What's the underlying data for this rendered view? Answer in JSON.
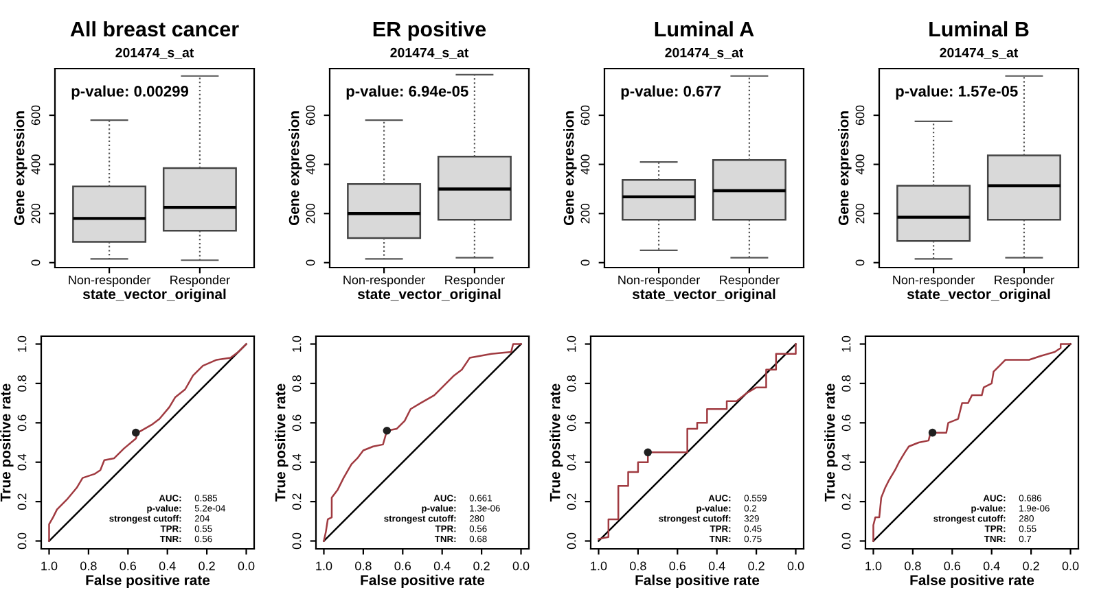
{
  "chart_data": [
    {
      "type": "box",
      "title": "All breast cancer",
      "subtitle": "201474_s_at",
      "xlabel": "state_vector_original",
      "ylabel": "Gene expression",
      "categories": [
        "Non-responder",
        "Responder"
      ],
      "ylim": [
        -20,
        790
      ],
      "yticks": [
        0,
        200,
        400,
        600
      ],
      "grid": false,
      "legend": false,
      "annotations": [
        "p-value: 0.00299"
      ],
      "series": [
        {
          "color": "#d9d9d9",
          "boxes": [
            {
              "low": 15,
              "q1": 85,
              "median": 180,
              "q3": 310,
              "high": 580
            },
            {
              "low": 10,
              "q1": 130,
              "median": 225,
              "q3": 385,
              "high": 760
            }
          ]
        }
      ]
    },
    {
      "type": "box",
      "title": "ER positive",
      "subtitle": "201474_s_at",
      "xlabel": "state_vector_original",
      "ylabel": "Gene expression",
      "categories": [
        "Non-responder",
        "Responder"
      ],
      "ylim": [
        -20,
        790
      ],
      "yticks": [
        0,
        200,
        400,
        600
      ],
      "grid": false,
      "legend": false,
      "annotations": [
        "p-value: 6.94e-05"
      ],
      "series": [
        {
          "color": "#d9d9d9",
          "boxes": [
            {
              "low": 15,
              "q1": 100,
              "median": 200,
              "q3": 320,
              "high": 580
            },
            {
              "low": 20,
              "q1": 175,
              "median": 300,
              "q3": 432,
              "high": 765
            }
          ]
        }
      ]
    },
    {
      "type": "box",
      "title": "Luminal A",
      "subtitle": "201474_s_at",
      "xlabel": "state_vector_original",
      "ylabel": "Gene expression",
      "categories": [
        "Non-responder",
        "Responder"
      ],
      "ylim": [
        -20,
        790
      ],
      "yticks": [
        0,
        200,
        400,
        600
      ],
      "grid": false,
      "legend": false,
      "annotations": [
        "p-value: 0.677"
      ],
      "series": [
        {
          "color": "#d9d9d9",
          "boxes": [
            {
              "low": 50,
              "q1": 175,
              "median": 268,
              "q3": 337,
              "high": 410
            },
            {
              "low": 20,
              "q1": 175,
              "median": 293,
              "q3": 418,
              "high": 760
            }
          ]
        }
      ]
    },
    {
      "type": "box",
      "title": "Luminal B",
      "subtitle": "201474_s_at",
      "xlabel": "state_vector_original",
      "ylabel": "Gene expression",
      "categories": [
        "Non-responder",
        "Responder"
      ],
      "ylim": [
        -20,
        790
      ],
      "yticks": [
        0,
        200,
        400,
        600
      ],
      "grid": false,
      "legend": false,
      "annotations": [
        "p-value: 1.57e-05"
      ],
      "series": [
        {
          "color": "#d9d9d9",
          "boxes": [
            {
              "low": 15,
              "q1": 88,
              "median": 185,
              "q3": 313,
              "high": 575
            },
            {
              "low": 20,
              "q1": 175,
              "median": 313,
              "q3": 437,
              "high": 760
            }
          ]
        }
      ]
    },
    {
      "type": "line",
      "xlabel": "False positive rate",
      "ylabel": "True positive rate",
      "xlim": [
        1.04,
        -0.04
      ],
      "ylim": [
        -0.04,
        1.04
      ],
      "xticks": [
        {
          "value": 1,
          "label": "1.0"
        },
        {
          "value": 0.8,
          "label": "0.8"
        },
        {
          "value": 0.6,
          "label": "0.6"
        },
        {
          "value": 0.4,
          "label": "0.4"
        },
        {
          "value": 0.2,
          "label": "0.2"
        },
        {
          "value": 0,
          "label": "0.0"
        }
      ],
      "yticks": [
        {
          "value": 0,
          "label": "0.0"
        },
        {
          "value": 0.2,
          "label": "0.2"
        },
        {
          "value": 0.4,
          "label": "0.4"
        },
        {
          "value": 0.6,
          "label": "0.6"
        },
        {
          "value": 0.8,
          "label": "0.8"
        },
        {
          "value": 1,
          "label": "1.0"
        }
      ],
      "grid": false,
      "legend": false,
      "annotations": [
        "AUC:",
        "0.585",
        "p-value:",
        "5.2e-04",
        "strongest cutoff:",
        "204",
        "TPR:",
        "0.55",
        "TNR:",
        "0.56"
      ],
      "series": [
        {
          "type": "line",
          "color": "#000000",
          "x": [
            1,
            0
          ],
          "values": [
            0,
            1
          ]
        },
        {
          "type": "line",
          "color": "#a03a40",
          "x": [
            1,
            1.0,
            0.98,
            0.96,
            0.91,
            0.86,
            0.83,
            0.77,
            0.74,
            0.72,
            0.67,
            0.62,
            0.56,
            0.55,
            0.48,
            0.44,
            0.39,
            0.36,
            0.31,
            0.27,
            0.22,
            0.15,
            0.08,
            0.04,
            0
          ],
          "values": [
            0,
            0.085,
            0.12,
            0.16,
            0.21,
            0.27,
            0.32,
            0.34,
            0.36,
            0.41,
            0.42,
            0.47,
            0.52,
            0.55,
            0.59,
            0.62,
            0.68,
            0.73,
            0.77,
            0.84,
            0.89,
            0.92,
            0.93,
            0.96,
            1
          ]
        },
        {
          "type": "scatter",
          "marker": "circle",
          "color": "#202020",
          "x": [
            0.56
          ],
          "values": [
            0.55
          ]
        }
      ]
    },
    {
      "type": "line",
      "xlabel": "False positive rate",
      "ylabel": "True positive rate",
      "xlim": [
        1.04,
        -0.04
      ],
      "ylim": [
        -0.04,
        1.04
      ],
      "xticks": [
        {
          "value": 1,
          "label": "1.0"
        },
        {
          "value": 0.8,
          "label": "0.8"
        },
        {
          "value": 0.6,
          "label": "0.6"
        },
        {
          "value": 0.4,
          "label": "0.4"
        },
        {
          "value": 0.2,
          "label": "0.2"
        },
        {
          "value": 0,
          "label": "0.0"
        }
      ],
      "yticks": [
        {
          "value": 0,
          "label": "0.0"
        },
        {
          "value": 0.2,
          "label": "0.2"
        },
        {
          "value": 0.4,
          "label": "0.4"
        },
        {
          "value": 0.6,
          "label": "0.6"
        },
        {
          "value": 0.8,
          "label": "0.8"
        },
        {
          "value": 1,
          "label": "1.0"
        }
      ],
      "grid": false,
      "legend": false,
      "annotations": [
        "AUC:",
        "0.661",
        "p-value:",
        "1.3e-06",
        "strongest cutoff:",
        "280",
        "TPR:",
        "0.56",
        "TNR:",
        "0.68"
      ],
      "series": [
        {
          "type": "line",
          "color": "#000000",
          "x": [
            1,
            0
          ],
          "values": [
            0,
            1
          ]
        },
        {
          "type": "line",
          "color": "#a03a40",
          "x": [
            1,
            0.99,
            0.98,
            0.96,
            0.96,
            0.93,
            0.9,
            0.86,
            0.83,
            0.8,
            0.75,
            0.7,
            0.68,
            0.63,
            0.59,
            0.56,
            0.51,
            0.44,
            0.4,
            0.34,
            0.3,
            0.26,
            0.15,
            0.05,
            0.04,
            0
          ],
          "values": [
            0,
            0.045,
            0.11,
            0.12,
            0.22,
            0.26,
            0.32,
            0.39,
            0.42,
            0.46,
            0.48,
            0.49,
            0.56,
            0.57,
            0.61,
            0.67,
            0.7,
            0.74,
            0.78,
            0.84,
            0.87,
            0.93,
            0.95,
            0.96,
            1,
            1
          ]
        },
        {
          "type": "scatter",
          "marker": "circle",
          "color": "#202020",
          "x": [
            0.68
          ],
          "values": [
            0.56
          ]
        }
      ]
    },
    {
      "type": "line",
      "xlabel": "False positive rate",
      "ylabel": "True positive rate",
      "xlim": [
        1.04,
        -0.04
      ],
      "ylim": [
        -0.04,
        1.04
      ],
      "xticks": [
        {
          "value": 1,
          "label": "1.0"
        },
        {
          "value": 0.8,
          "label": "0.8"
        },
        {
          "value": 0.6,
          "label": "0.6"
        },
        {
          "value": 0.4,
          "label": "0.4"
        },
        {
          "value": 0.2,
          "label": "0.2"
        },
        {
          "value": 0,
          "label": "0.0"
        }
      ],
      "yticks": [
        {
          "value": 0,
          "label": "0.0"
        },
        {
          "value": 0.2,
          "label": "0.2"
        },
        {
          "value": 0.4,
          "label": "0.4"
        },
        {
          "value": 0.6,
          "label": "0.6"
        },
        {
          "value": 0.8,
          "label": "0.8"
        },
        {
          "value": 1,
          "label": "1.0"
        }
      ],
      "grid": false,
      "legend": false,
      "annotations": [
        "AUC:",
        "0.559",
        "p-value:",
        "0.2",
        "strongest cutoff:",
        "329",
        "TPR:",
        "0.45",
        "TNR:",
        "0.75"
      ],
      "series": [
        {
          "type": "line",
          "color": "#000000",
          "x": [
            1,
            0
          ],
          "values": [
            0,
            1
          ]
        },
        {
          "type": "line",
          "color": "#a03a40",
          "x": [
            1,
            0.95,
            0.95,
            0.9,
            0.9,
            0.85,
            0.85,
            0.8,
            0.8,
            0.75,
            0.75,
            0.55,
            0.55,
            0.5,
            0.5,
            0.45,
            0.45,
            0.35,
            0.35,
            0.3,
            0.25,
            0.2,
            0.15,
            0.15,
            0.1,
            0.1,
            0,
            0
          ],
          "values": [
            0.01,
            0.02,
            0.11,
            0.11,
            0.28,
            0.28,
            0.35,
            0.35,
            0.4,
            0.4,
            0.45,
            0.45,
            0.57,
            0.57,
            0.6,
            0.6,
            0.67,
            0.67,
            0.71,
            0.71,
            0.75,
            0.78,
            0.78,
            0.87,
            0.87,
            0.95,
            0.95,
            1
          ]
        },
        {
          "type": "scatter",
          "marker": "circle",
          "color": "#202020",
          "x": [
            0.75
          ],
          "values": [
            0.45
          ]
        }
      ]
    },
    {
      "type": "line",
      "xlabel": "False positive rate",
      "ylabel": "True positive rate",
      "xlim": [
        1.04,
        -0.04
      ],
      "ylim": [
        -0.04,
        1.04
      ],
      "xticks": [
        {
          "value": 1,
          "label": "1.0"
        },
        {
          "value": 0.8,
          "label": "0.8"
        },
        {
          "value": 0.6,
          "label": "0.6"
        },
        {
          "value": 0.4,
          "label": "0.4"
        },
        {
          "value": 0.2,
          "label": "0.2"
        },
        {
          "value": 0,
          "label": "0.0"
        }
      ],
      "yticks": [
        {
          "value": 0,
          "label": "0.0"
        },
        {
          "value": 0.2,
          "label": "0.2"
        },
        {
          "value": 0.4,
          "label": "0.4"
        },
        {
          "value": 0.6,
          "label": "0.6"
        },
        {
          "value": 0.8,
          "label": "0.8"
        },
        {
          "value": 1,
          "label": "1.0"
        }
      ],
      "grid": false,
      "legend": false,
      "annotations": [
        "AUC:",
        "0.686",
        "p-value:",
        "1.9e-06",
        "strongest cutoff:",
        "280",
        "TPR:",
        "0.55",
        "TNR:",
        "0.7"
      ],
      "series": [
        {
          "type": "line",
          "color": "#000000",
          "x": [
            1,
            0
          ],
          "values": [
            0,
            1
          ]
        },
        {
          "type": "line",
          "color": "#a03a40",
          "x": [
            1,
            1,
            0.99,
            0.97,
            0.96,
            0.94,
            0.92,
            0.89,
            0.87,
            0.84,
            0.82,
            0.77,
            0.72,
            0.71,
            0.67,
            0.63,
            0.62,
            0.57,
            0.55,
            0.52,
            0.5,
            0.45,
            0.44,
            0.4,
            0.39,
            0.36,
            0.33,
            0.21,
            0.15,
            0.08,
            0.05,
            0.05,
            0
          ],
          "values": [
            0,
            0.08,
            0.12,
            0.12,
            0.22,
            0.27,
            0.31,
            0.36,
            0.4,
            0.45,
            0.48,
            0.5,
            0.51,
            0.55,
            0.55,
            0.55,
            0.6,
            0.62,
            0.7,
            0.7,
            0.74,
            0.74,
            0.78,
            0.8,
            0.86,
            0.89,
            0.92,
            0.92,
            0.94,
            0.96,
            0.98,
            1,
            1
          ]
        },
        {
          "type": "scatter",
          "marker": "circle",
          "color": "#202020",
          "x": [
            0.7
          ],
          "values": [
            0.55
          ]
        }
      ]
    }
  ]
}
